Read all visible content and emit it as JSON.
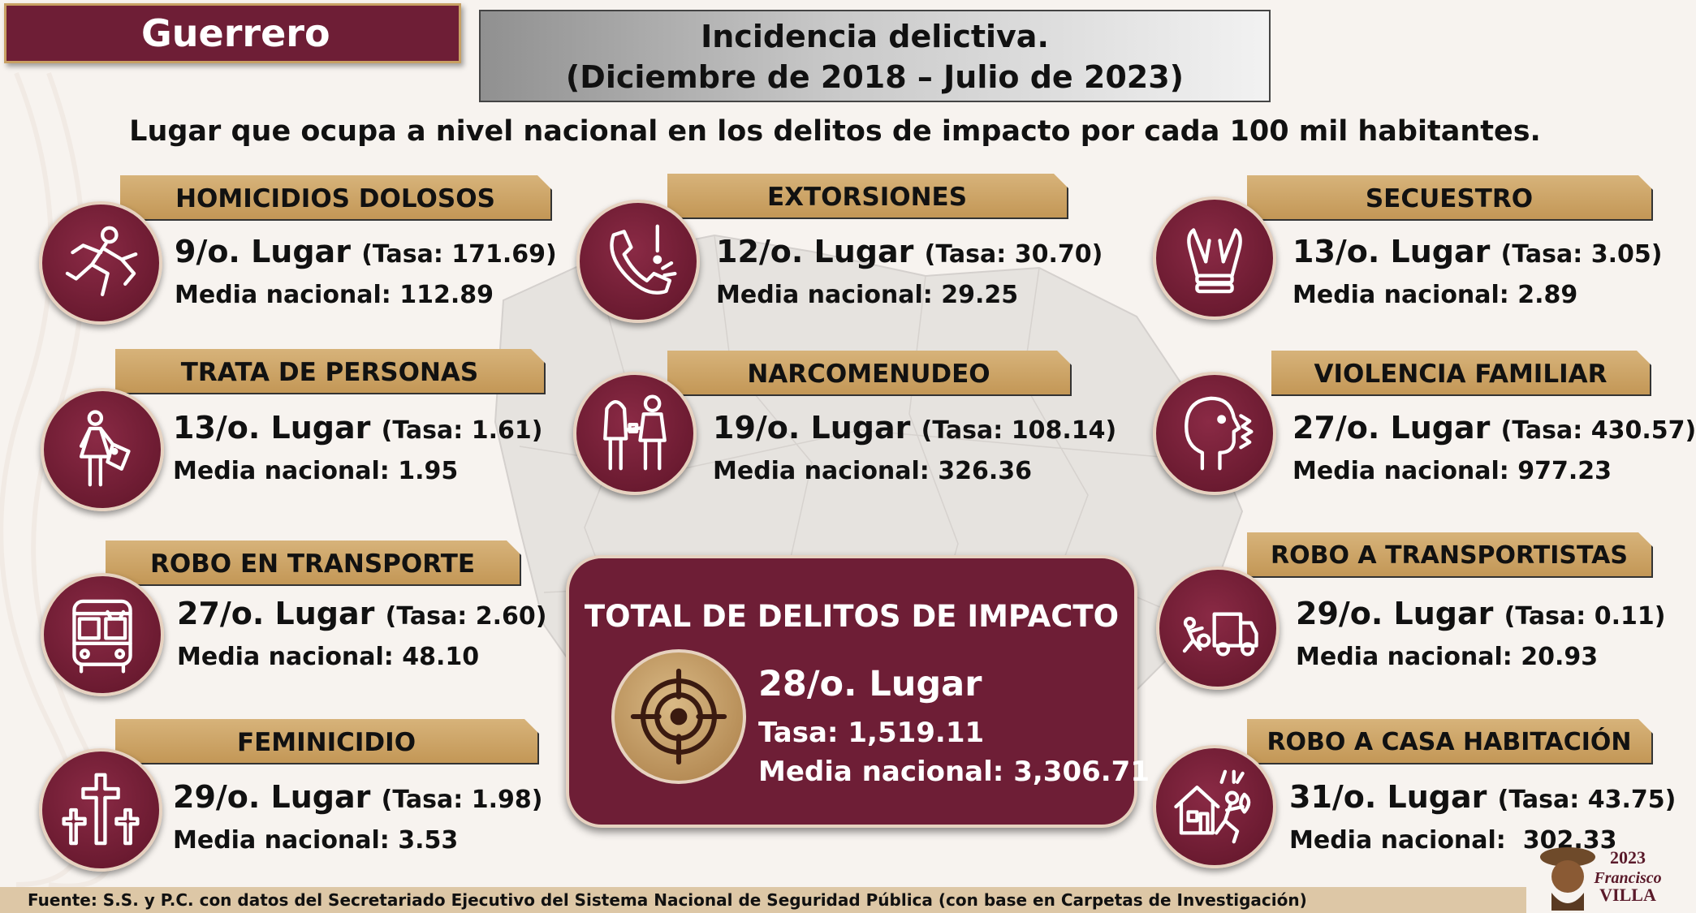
{
  "state": "Guerrero",
  "title_line1": "Incidencia delictiva.",
  "title_line2": "(Diciembre de 2018 – Julio de 2023)",
  "subtitle": "Lugar que ocupa a nivel nacional en los delitos de impacto por cada 100 mil habitantes.",
  "crimes": {
    "homicidios": {
      "label": "HOMICIDIOS DOLOSOS",
      "rank": "9/o. Lugar",
      "tasa": "(Tasa: 171.69)",
      "media": "Media nacional: 112.89",
      "icon": "running-man-icon"
    },
    "extorsiones": {
      "label": "EXTORSIONES",
      "rank": "12/o. Lugar",
      "tasa": "(Tasa: 30.70)",
      "media": "Media nacional: 29.25",
      "icon": "phone-alert-icon"
    },
    "secuestro": {
      "label": "SECUESTRO",
      "rank": "13/o. Lugar",
      "tasa": "(Tasa: 3.05)",
      "media": "Media nacional: 2.89",
      "icon": "tied-hands-icon"
    },
    "trata": {
      "label": "TRATA DE PERSONAS",
      "rank": "13/o. Lugar",
      "tasa": "(Tasa: 1.61)",
      "media": "Media nacional: 1.95",
      "icon": "woman-tag-icon"
    },
    "narcomenudeo": {
      "label": "NARCOMENUDEO",
      "rank": "19/o. Lugar",
      "tasa": "(Tasa: 108.14)",
      "media": "Media nacional: 326.36",
      "icon": "hooded-figures-icon"
    },
    "violencia": {
      "label": "VIOLENCIA FAMILIAR",
      "rank": "27/o. Lugar",
      "tasa": "(Tasa: 430.57)",
      "media": "Media nacional: 977.23",
      "icon": "shouting-face-icon"
    },
    "robo_transporte": {
      "label": "ROBO EN TRANSPORTE",
      "rank": "27/o. Lugar",
      "tasa": "(Tasa: 2.60)",
      "media": "Media nacional: 48.10",
      "icon": "bus-icon"
    },
    "robo_transportistas": {
      "label": "ROBO A TRANSPORTISTAS",
      "rank": "29/o. Lugar",
      "tasa": "(Tasa: 0.11)",
      "media": "Media nacional: 20.93",
      "icon": "truck-thief-icon"
    },
    "feminicidio": {
      "label": "FEMINICIDIO",
      "rank": "29/o. Lugar",
      "tasa": "(Tasa: 1.98)",
      "media": "Media nacional: 3.53",
      "icon": "crosses-icon"
    },
    "robo_casa": {
      "label": "ROBO A CASA HABITACIÓN",
      "rank": "31/o. Lugar",
      "tasa": "(Tasa: 43.75)",
      "media": "Media nacional:  302.33",
      "icon": "house-thief-icon"
    }
  },
  "total": {
    "title": "TOTAL DE DELITOS DE IMPACTO",
    "rank": "28/o. Lugar",
    "tasa": "Tasa: 1,519.11",
    "media": "Media nacional: 3,306.71",
    "icon": "target-icon"
  },
  "footer": "Fuente: S.S. y P.C. con datos del Secretariado Ejecutivo del Sistema Nacional de Seguridad Pública (con base en Carpetas de Investigación)",
  "logo": {
    "year": "2023",
    "name1": "Francisco",
    "name2": "VILLA"
  },
  "colors": {
    "guinda": "#6e1e36",
    "gold": "#c8a063"
  }
}
